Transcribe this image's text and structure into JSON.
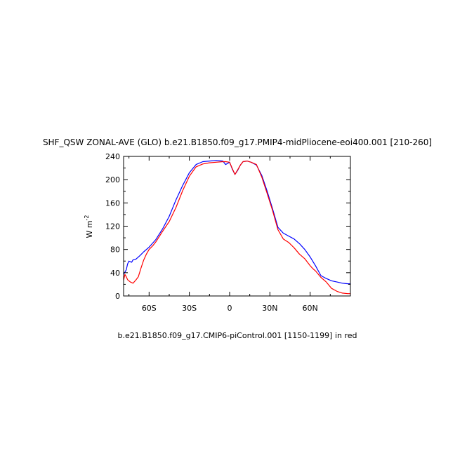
{
  "chart_data": {
    "type": "line",
    "title": "SHF_QSW ZONAL-AVE (GLO) b.e21.B1850.f09_g17.PMIP4-midPliocene-eoi400.001 [210-260]",
    "subtitle": "b.e21.B1850.f09_g17.CMIP6-piControl.001 [1150-1199] in red",
    "ylabel": "W m",
    "ylabel_exponent": "-2",
    "xlim": [
      -79,
      90
    ],
    "ylim": [
      0,
      240
    ],
    "xticks": [
      {
        "value": -60,
        "label": "60S"
      },
      {
        "value": -30,
        "label": "30S"
      },
      {
        "value": 0,
        "label": "0"
      },
      {
        "value": 30,
        "label": "30N"
      },
      {
        "value": 60,
        "label": "60N"
      }
    ],
    "yticks": [
      {
        "value": 0,
        "label": "0"
      },
      {
        "value": 40,
        "label": "40"
      },
      {
        "value": 80,
        "label": "80"
      },
      {
        "value": 120,
        "label": "120"
      },
      {
        "value": 160,
        "label": "160"
      },
      {
        "value": 200,
        "label": "200"
      },
      {
        "value": 240,
        "label": "240"
      }
    ],
    "series": [
      {
        "color": "#0000ff",
        "x": [
          -79,
          -77,
          -76,
          -75,
          -73,
          -72,
          -70,
          -67,
          -64,
          -60,
          -55,
          -50,
          -45,
          -40,
          -35,
          -30,
          -25,
          -20,
          -15,
          -10,
          -5,
          -3,
          0,
          2,
          4,
          6,
          8,
          10,
          13,
          16,
          20,
          24,
          28,
          32,
          36,
          40,
          44,
          48,
          52,
          56,
          60,
          64,
          68,
          72,
          76,
          80,
          84,
          88,
          90
        ],
        "y": [
          37,
          45,
          55,
          60,
          58,
          62,
          63,
          69,
          76,
          84,
          97,
          115,
          137,
          165,
          190,
          212,
          226,
          231,
          232,
          233,
          232,
          226,
          230,
          218,
          209,
          216,
          225,
          231,
          232,
          230,
          225,
          207,
          180,
          150,
          118,
          108,
          103,
          98,
          90,
          80,
          67,
          52,
          35,
          30,
          26,
          24,
          22,
          21,
          21
        ]
      },
      {
        "color": "#ff0000",
        "x": [
          -79,
          -78,
          -77,
          -76,
          -75,
          -74,
          -72,
          -70,
          -68,
          -66,
          -64,
          -62,
          -60,
          -57,
          -55,
          -50,
          -45,
          -40,
          -35,
          -30,
          -25,
          -20,
          -15,
          -10,
          -5,
          -3,
          0,
          2,
          4,
          6,
          8,
          10,
          13,
          16,
          20,
          24,
          28,
          32,
          36,
          40,
          44,
          48,
          52,
          56,
          60,
          62,
          64,
          68,
          72,
          76,
          80,
          84,
          88,
          90
        ],
        "y": [
          27,
          37,
          33,
          28,
          26,
          24,
          22,
          27,
          33,
          48,
          62,
          72,
          80,
          87,
          93,
          111,
          128,
          152,
          181,
          206,
          222,
          227,
          229,
          230,
          231,
          231,
          230,
          219,
          209,
          217,
          225,
          231,
          232,
          230,
          226,
          204,
          176,
          147,
          114,
          98,
          92,
          83,
          72,
          64,
          52,
          47,
          43,
          32,
          24,
          13,
          8,
          5,
          4,
          4
        ]
      }
    ]
  }
}
